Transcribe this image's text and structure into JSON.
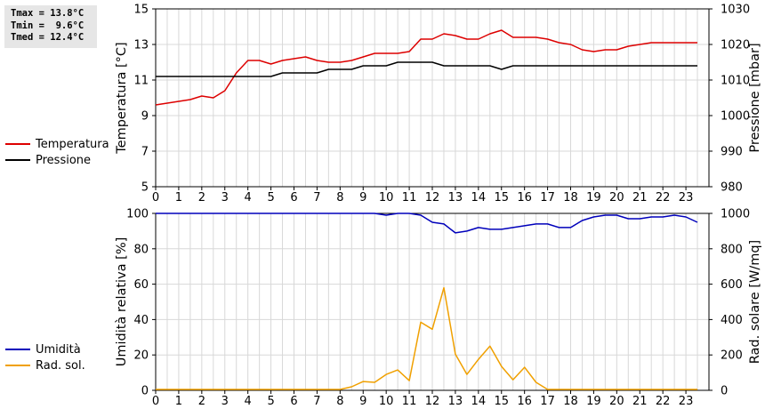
{
  "stats": {
    "tmax": "Tmax = 13.8°C",
    "tmin": "Tmin =  9.6°C",
    "tmed": "Tmed = 12.4°C"
  },
  "legend_top": [
    {
      "label": "Temperatura",
      "color": "#dd0000"
    },
    {
      "label": "Pressione",
      "color": "#000000"
    }
  ],
  "legend_bottom": [
    {
      "label": "Umidità",
      "color": "#0000bb"
    },
    {
      "label": "Rad. sol.",
      "color": "#f0a000"
    }
  ],
  "chart_data": [
    {
      "type": "line",
      "xlim": [
        0,
        24
      ],
      "x_ticks": [
        0,
        1,
        2,
        3,
        4,
        5,
        6,
        7,
        8,
        9,
        10,
        11,
        12,
        13,
        14,
        15,
        16,
        17,
        18,
        19,
        20,
        21,
        22,
        23
      ],
      "ylabel_left": "Temperatura [°C]",
      "ylim_left": [
        5,
        15
      ],
      "yticks_left": [
        5,
        7,
        9,
        11,
        13,
        15
      ],
      "ylabel_right": "Pressione [mbar]",
      "ylim_right": [
        980,
        1030
      ],
      "yticks_right": [
        980,
        990,
        1000,
        1010,
        1020,
        1030
      ],
      "grid": true,
      "series": [
        {
          "name": "Temperatura",
          "axis": "left",
          "color": "#dd0000",
          "x": [
            0,
            0.5,
            1,
            1.5,
            2,
            2.5,
            3,
            3.5,
            4,
            4.5,
            5,
            5.5,
            6,
            6.5,
            7,
            7.5,
            8,
            8.5,
            9,
            9.5,
            10,
            10.5,
            11,
            11.5,
            12,
            12.5,
            13,
            13.5,
            14,
            14.5,
            15,
            15.5,
            16,
            16.5,
            17,
            17.5,
            18,
            18.5,
            19,
            19.5,
            20,
            20.5,
            21,
            21.5,
            22,
            22.5,
            23,
            23.5
          ],
          "y": [
            9.6,
            9.7,
            9.8,
            9.9,
            10.1,
            10.0,
            10.4,
            11.4,
            12.1,
            12.1,
            11.9,
            12.1,
            12.2,
            12.3,
            12.1,
            12.0,
            12.0,
            12.1,
            12.3,
            12.5,
            12.5,
            12.5,
            12.6,
            13.3,
            13.3,
            13.6,
            13.5,
            13.3,
            13.3,
            13.6,
            13.8,
            13.4,
            13.4,
            13.4,
            13.3,
            13.1,
            13.0,
            12.7,
            12.6,
            12.7,
            12.7,
            12.9,
            13.0,
            13.1,
            13.1,
            13.1,
            13.1,
            13.1
          ]
        },
        {
          "name": "Pressione",
          "axis": "right",
          "color": "#000000",
          "x": [
            0,
            0.5,
            1,
            1.5,
            2,
            2.5,
            3,
            3.5,
            4,
            4.5,
            5,
            5.5,
            6,
            6.5,
            7,
            7.5,
            8,
            8.5,
            9,
            9.5,
            10,
            10.5,
            11,
            11.5,
            12,
            12.5,
            13,
            13.5,
            14,
            14.5,
            15,
            15.5,
            16,
            16.5,
            17,
            17.5,
            18,
            18.5,
            19,
            19.5,
            20,
            20.5,
            21,
            21.5,
            22,
            22.5,
            23,
            23.5
          ],
          "y": [
            1011,
            1011,
            1011,
            1011,
            1011,
            1011,
            1011,
            1011,
            1011,
            1011,
            1011,
            1012,
            1012,
            1012,
            1012,
            1013,
            1013,
            1013,
            1014,
            1014,
            1014,
            1015,
            1015,
            1015,
            1015,
            1014,
            1014,
            1014,
            1014,
            1014,
            1013,
            1014,
            1014,
            1014,
            1014,
            1014,
            1014,
            1014,
            1014,
            1014,
            1014,
            1014,
            1014,
            1014,
            1014,
            1014,
            1014,
            1014
          ]
        }
      ]
    },
    {
      "type": "line",
      "xlim": [
        0,
        24
      ],
      "x_ticks": [
        0,
        1,
        2,
        3,
        4,
        5,
        6,
        7,
        8,
        9,
        10,
        11,
        12,
        13,
        14,
        15,
        16,
        17,
        18,
        19,
        20,
        21,
        22,
        23
      ],
      "ylabel_left": "Umidità relativa [%]",
      "ylim_left": [
        0,
        100
      ],
      "yticks_left": [
        0,
        20,
        40,
        60,
        80,
        100
      ],
      "ylabel_right": "Rad. solare [W/mq]",
      "ylim_right": [
        0,
        1000
      ],
      "yticks_right": [
        0,
        200,
        400,
        600,
        800,
        1000
      ],
      "grid": true,
      "series": [
        {
          "name": "Umidità",
          "axis": "left",
          "color": "#0000bb",
          "x": [
            0,
            1,
            2,
            3,
            4,
            5,
            6,
            7,
            8,
            9,
            9.5,
            10,
            10.5,
            11,
            11.5,
            12,
            12.5,
            13,
            13.5,
            14,
            14.5,
            15,
            15.5,
            16,
            16.5,
            17,
            17.5,
            18,
            18.5,
            19,
            19.5,
            20,
            20.5,
            21,
            21.5,
            22,
            22.5,
            23,
            23.5
          ],
          "y": [
            100,
            100,
            100,
            100,
            100,
            100,
            100,
            100,
            100,
            100,
            100,
            99,
            100,
            100,
            99,
            95,
            94,
            89,
            90,
            92,
            91,
            91,
            92,
            93,
            94,
            94,
            92,
            92,
            96,
            98,
            99,
            99,
            97,
            97,
            98,
            98,
            99,
            98,
            95
          ]
        },
        {
          "name": "Rad. sol.",
          "axis": "right",
          "color": "#f0a000",
          "x": [
            0,
            1,
            2,
            3,
            4,
            5,
            6,
            7,
            8,
            8.5,
            9,
            9.5,
            10,
            10.5,
            11,
            11.5,
            12,
            12.5,
            13,
            13.5,
            14,
            14.5,
            15,
            15.5,
            16,
            16.5,
            17,
            17.5,
            18,
            19,
            20,
            21,
            22,
            23,
            23.5
          ],
          "y": [
            5,
            5,
            5,
            5,
            5,
            5,
            5,
            5,
            5,
            20,
            50,
            45,
            90,
            115,
            55,
            385,
            345,
            580,
            205,
            90,
            175,
            250,
            135,
            60,
            130,
            45,
            5,
            5,
            5,
            5,
            5,
            5,
            5,
            5,
            5
          ]
        }
      ]
    }
  ]
}
